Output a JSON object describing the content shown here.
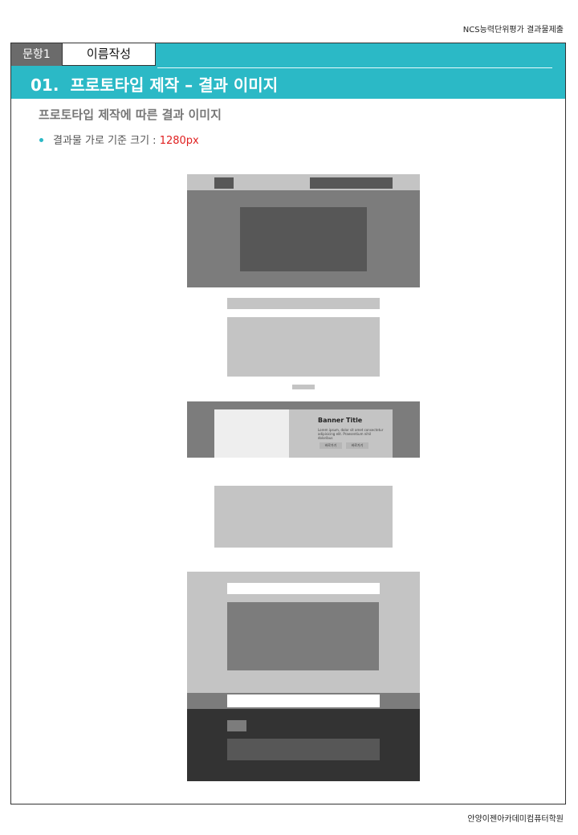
{
  "page": {
    "header_right": "NCS능력단위평가 결과물제출",
    "footer_right": "안양이젠아카데미컴퓨터학원"
  },
  "tabs": {
    "question": "문항1",
    "name": "이름작성"
  },
  "section": {
    "number": "01.",
    "title": "프로토타입 제작 – 결과 이미지"
  },
  "content": {
    "subtitle": "프로토타입 제작에 따른 결과 이미지",
    "bullet_label": "결과물 가로 기준 크기 : ",
    "bullet_value": "1280px"
  },
  "wireframe": {
    "banner_title": "Banner Title",
    "banner_text": "Lorem ipsum, dolor sit amet consectetur adipisicing elit. Praesentium nihil doloribus",
    "banner_button_1": "바로가기",
    "banner_button_2": "바로가기"
  },
  "colors": {
    "accent": "#2bb9c6",
    "tab_bg": "#6b6b6b",
    "highlight": "#e02020"
  }
}
